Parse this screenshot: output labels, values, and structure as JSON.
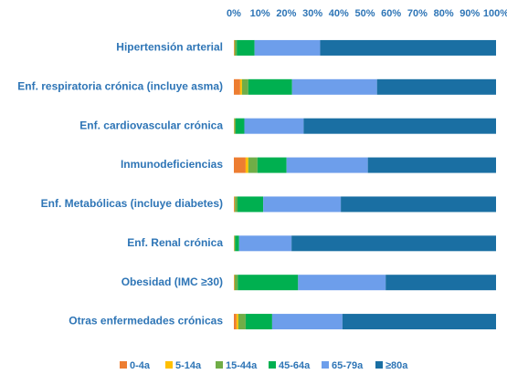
{
  "chart_data": {
    "type": "stacked-bar-horizontal",
    "categories": [
      "Hipertensión arterial",
      "Enf. respiratoria crónica (incluye asma)",
      "Enf. cardiovascular crónica",
      "Inmunodeficiencias",
      "Enf. Metabólicas (incluye diabetes)",
      "Enf. Renal crónica",
      "Obesidad (IMC ≥30)",
      "Otras enfermedades crónicas"
    ],
    "series": [
      {
        "name": "0-4a",
        "color": "#ed7d31",
        "values": [
          0.2,
          2.4,
          0.1,
          4.5,
          0.3,
          0.1,
          0.2,
          1.0
        ]
      },
      {
        "name": "5-14a",
        "color": "#ffc000",
        "values": [
          0.1,
          0.7,
          0.1,
          1.0,
          0.1,
          0.1,
          0.1,
          0.7
        ]
      },
      {
        "name": "15-44a",
        "color": "#70ad47",
        "values": [
          0.8,
          2.4,
          0.5,
          3.5,
          1.0,
          0.3,
          1.2,
          2.8
        ]
      },
      {
        "name": "45-64a",
        "color": "#00b050",
        "values": [
          6.8,
          16.7,
          3.3,
          11.1,
          9.8,
          1.5,
          23.0,
          10.1
        ]
      },
      {
        "name": "65-79a",
        "color": "#6d9eeb",
        "values": [
          25.0,
          32.4,
          22.6,
          31.0,
          29.6,
          20.0,
          33.4,
          26.8
        ]
      },
      {
        "name": "≥80a",
        "color": "#1a6fa3",
        "values": [
          67.1,
          45.4,
          73.4,
          48.9,
          59.2,
          78.0,
          42.1,
          58.6
        ]
      }
    ],
    "xlim": [
      0,
      100
    ],
    "xticks": [
      {
        "value": 0,
        "label": "0%"
      },
      {
        "value": 10,
        "label": "10%"
      },
      {
        "value": 20,
        "label": "20%"
      },
      {
        "value": 30,
        "label": "30%"
      },
      {
        "value": 40,
        "label": "40%"
      },
      {
        "value": 50,
        "label": "50%"
      },
      {
        "value": 60,
        "label": "60%"
      },
      {
        "value": 70,
        "label": "70%"
      },
      {
        "value": 80,
        "label": "80%"
      },
      {
        "value": 90,
        "label": "90%"
      },
      {
        "value": 100,
        "label": "100%"
      }
    ],
    "legend": "bottom"
  }
}
